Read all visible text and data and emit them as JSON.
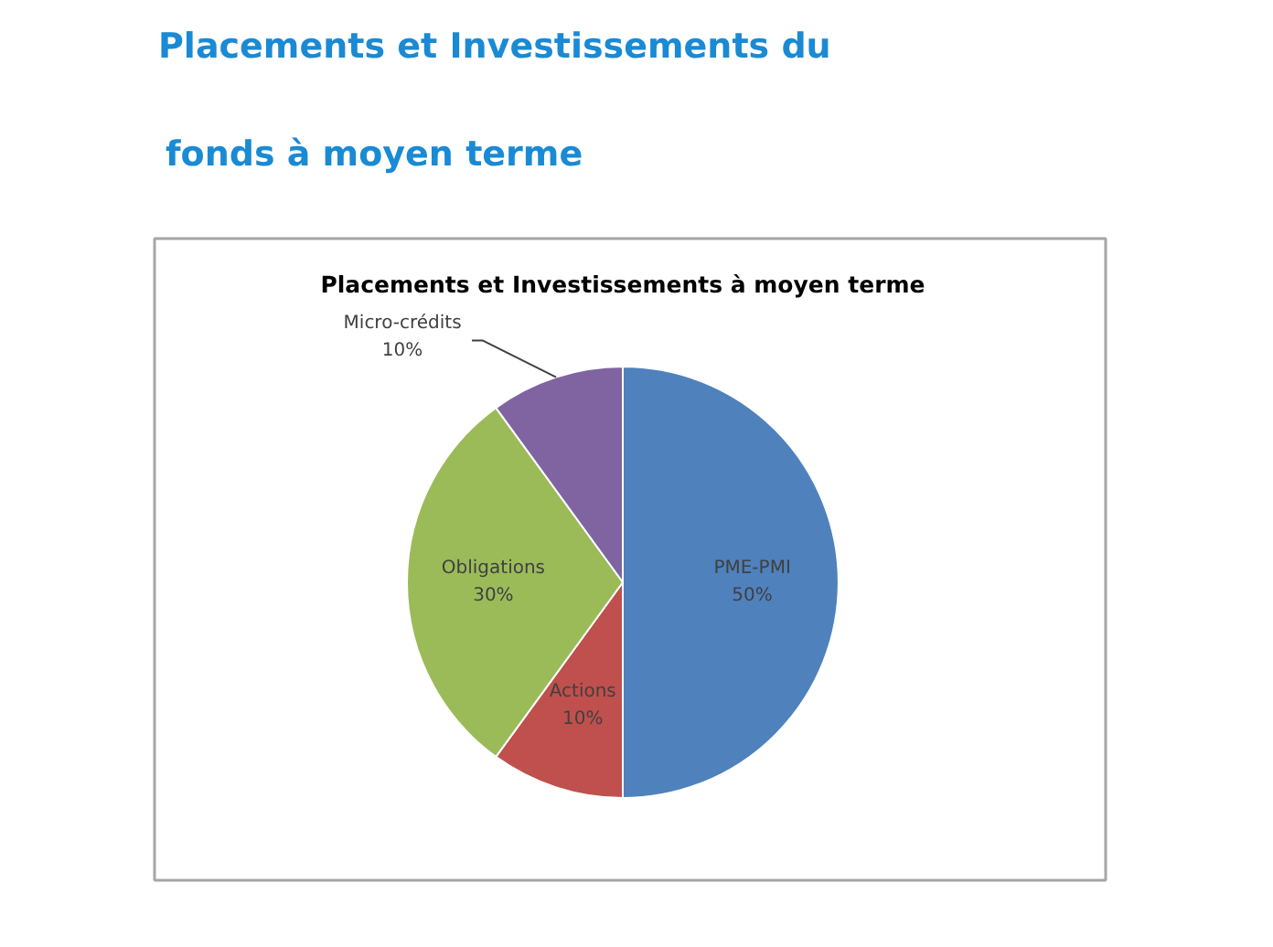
{
  "chart_data": {
    "type": "pie",
    "title": "Placements et Investissements du fonds à moyen terme",
    "subtitle": "Placements et Investissements à moyen terme",
    "categories": [
      "PME-PMI",
      "Actions",
      "Obligations",
      "Micro-crédits"
    ],
    "values": [
      50,
      10,
      30,
      10
    ],
    "colors": [
      "#4f81bd",
      "#c0504d",
      "#9bbb59",
      "#8064a2"
    ],
    "value_labels": [
      "50%",
      "10%",
      "30%",
      "10%"
    ]
  }
}
